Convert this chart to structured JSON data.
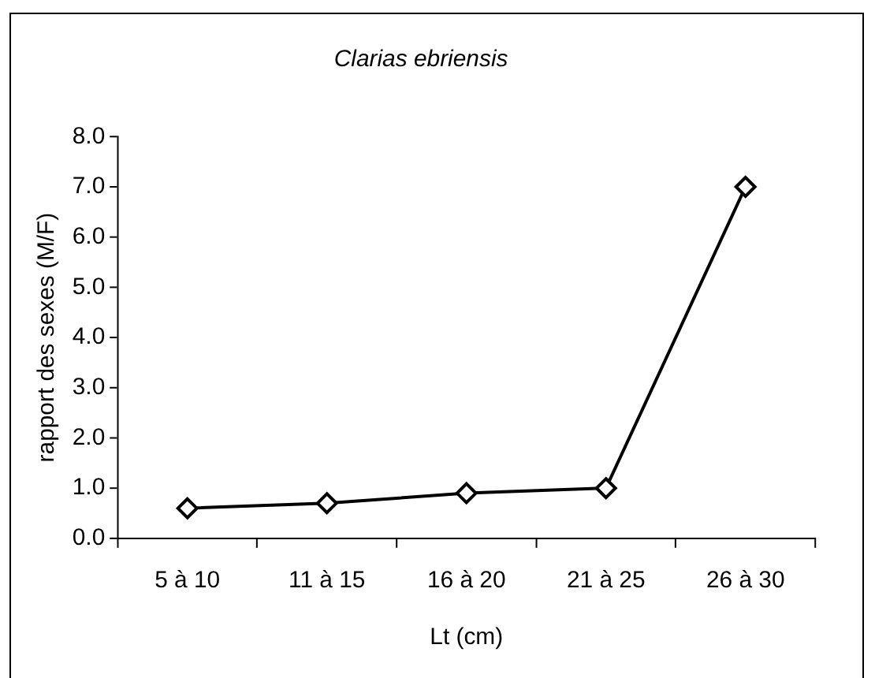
{
  "chart_data": {
    "type": "line",
    "title": "Clarias ebriensis",
    "xlabel": "Lt (cm)",
    "ylabel": "rapport des sexes (M/F)",
    "categories": [
      "5 à 10",
      "11 à 15",
      "16 à 20",
      "21 à 25",
      "26 à 30"
    ],
    "series": [
      {
        "color": "#000000",
        "values": [
          0.6,
          0.7,
          0.9,
          1.0,
          7.0
        ]
      }
    ],
    "ylim": [
      0,
      8
    ],
    "yticks": [
      {
        "value": 0,
        "label": "0.0"
      },
      {
        "value": 1,
        "label": "1.0"
      },
      {
        "value": 2,
        "label": "2.0"
      },
      {
        "value": 3,
        "label": "3.0"
      },
      {
        "value": 4,
        "label": "4.0"
      },
      {
        "value": 5,
        "label": "5.0"
      },
      {
        "value": 6,
        "label": "6.0"
      },
      {
        "value": 7,
        "label": "7.0"
      },
      {
        "value": 8,
        "label": "8.0"
      }
    ],
    "grid": false,
    "legend": false,
    "marker": "diamond",
    "line_style": "solid"
  }
}
